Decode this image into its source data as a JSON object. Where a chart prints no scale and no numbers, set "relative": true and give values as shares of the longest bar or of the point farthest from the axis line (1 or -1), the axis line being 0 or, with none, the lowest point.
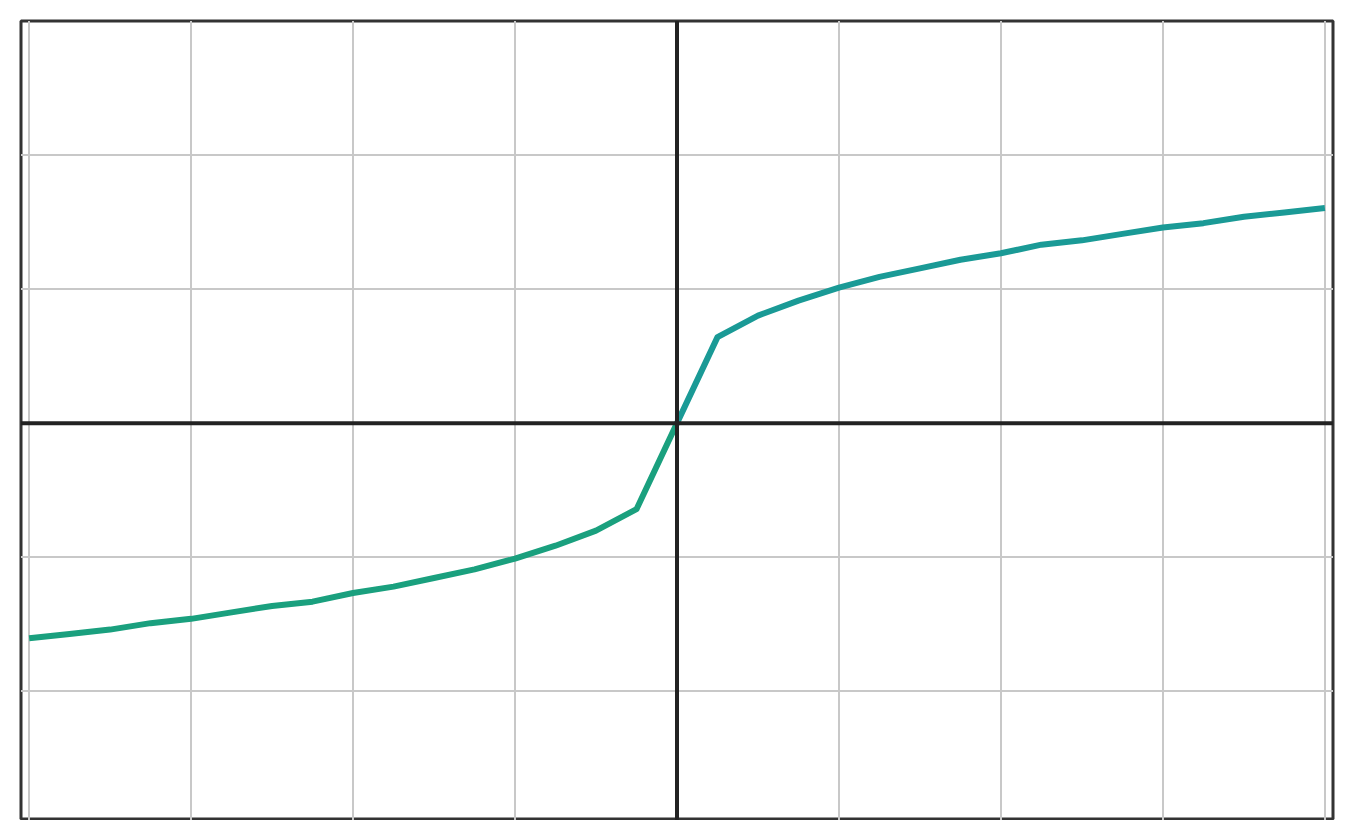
{
  "chart_data": {
    "type": "line",
    "relative": true,
    "grid": true,
    "marker": "none",
    "line_style": "solid",
    "categories": [
      null,
      null,
      null,
      null,
      null,
      null,
      null,
      null,
      null,
      null,
      null,
      null,
      null,
      null,
      null,
      null,
      null,
      null,
      null,
      null,
      null,
      null,
      null,
      null,
      null,
      null,
      null,
      null,
      null,
      null,
      null,
      null,
      null
    ],
    "series": [
      {
        "color": "#1aa07e",
        "values": [
          -1.0,
          -0.98,
          -0.96,
          -0.93,
          -0.91,
          -0.88,
          -0.85,
          -0.83,
          -0.79,
          -0.76,
          -0.72,
          -0.68,
          -0.63,
          -0.57,
          -0.5,
          -0.4,
          0,
          null,
          null,
          null,
          null,
          null,
          null,
          null,
          null,
          null,
          null,
          null,
          null,
          null,
          null,
          null,
          null
        ]
      },
      {
        "color": "#1a9a96",
        "values": [
          null,
          null,
          null,
          null,
          null,
          null,
          null,
          null,
          null,
          null,
          null,
          null,
          null,
          null,
          null,
          null,
          0,
          0.4,
          0.5,
          0.57,
          0.63,
          0.68,
          0.72,
          0.76,
          0.79,
          0.83,
          0.85,
          0.88,
          0.91,
          0.93,
          0.96,
          0.98,
          1.0
        ]
      }
    ]
  }
}
